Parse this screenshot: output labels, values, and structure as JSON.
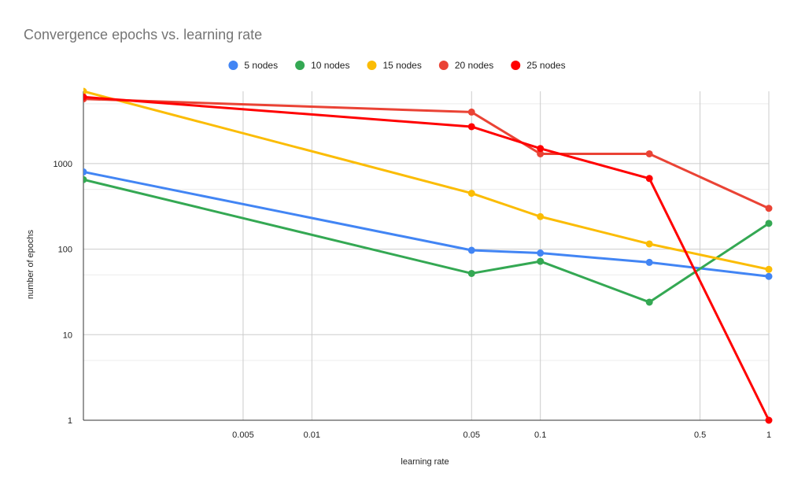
{
  "chart_data": {
    "type": "line",
    "title": "Convergence epochs vs. learning rate",
    "xlabel": "learning rate",
    "ylabel": "number of epochs",
    "x_scale": "log",
    "y_scale": "log",
    "xlim": [
      0.001,
      1
    ],
    "ylim": [
      1,
      7000
    ],
    "x_ticks": [
      {
        "value": 0.005,
        "label": "0.005"
      },
      {
        "value": 0.01,
        "label": "0.01"
      },
      {
        "value": 0.05,
        "label": "0.05"
      },
      {
        "value": 0.1,
        "label": "0.1"
      },
      {
        "value": 0.5,
        "label": "0.5"
      },
      {
        "value": 1,
        "label": "1"
      }
    ],
    "y_ticks": [
      {
        "value": 1,
        "label": "1"
      },
      {
        "value": 10,
        "label": "10"
      },
      {
        "value": 100,
        "label": "100"
      },
      {
        "value": 1000,
        "label": "1000"
      }
    ],
    "grid": true,
    "legend_position": "top",
    "x": [
      0.001,
      0.05,
      0.1,
      0.3,
      1
    ],
    "series": [
      {
        "name": "5 nodes",
        "color": "#4285f4",
        "values": [
          800,
          97,
          90,
          70,
          48
        ]
      },
      {
        "name": "10 nodes",
        "color": "#34a853",
        "values": [
          650,
          52,
          72,
          24,
          200
        ]
      },
      {
        "name": "15 nodes",
        "color": "#fbbc04",
        "values": [
          7000,
          450,
          240,
          115,
          58
        ]
      },
      {
        "name": "20 nodes",
        "color": "#ea4335",
        "values": [
          5700,
          4000,
          1300,
          1300,
          300
        ]
      },
      {
        "name": "25 nodes",
        "color": "#ff0000",
        "values": [
          6000,
          2700,
          1500,
          670,
          1
        ]
      }
    ]
  }
}
